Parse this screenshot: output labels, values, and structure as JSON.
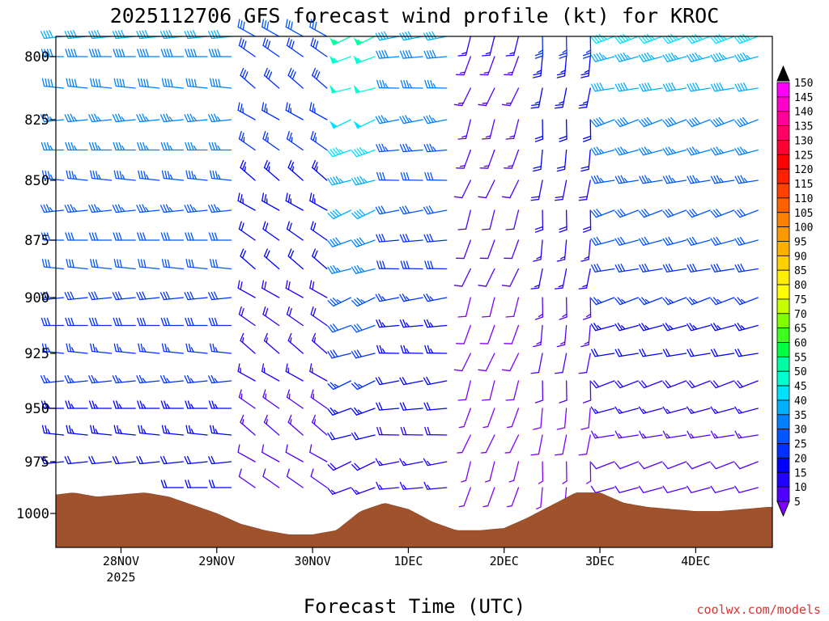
{
  "chart_data": {
    "type": "wind-barb-profile",
    "title": "2025112706 GFS forecast wind profile (kt) for KROC",
    "xlabel": "Forecast Time (UTC)",
    "ylabel": "",
    "credit": "coolwx.com/models",
    "y_axis": {
      "reversed": true,
      "ylim": [
        1016,
        791
      ],
      "ticks": [
        "800",
        "825",
        "850",
        "875",
        "900",
        "925",
        "950",
        "975",
        "1000"
      ]
    },
    "x_axis": {
      "xlim": [
        -0.68,
        6.8
      ],
      "ticks": [
        {
          "day": 0,
          "label": "28NOV",
          "sublabel": "2025"
        },
        {
          "day": 1,
          "label": "29NOV",
          "sublabel": ""
        },
        {
          "day": 2,
          "label": "30NOV",
          "sublabel": ""
        },
        {
          "day": 3,
          "label": "1DEC",
          "sublabel": ""
        },
        {
          "day": 4,
          "label": "2DEC",
          "sublabel": ""
        },
        {
          "day": 5,
          "label": "3DEC",
          "sublabel": ""
        },
        {
          "day": 6,
          "label": "4DEC",
          "sublabel": ""
        }
      ]
    },
    "levels_hpa": [
      790,
      800,
      812.5,
      825,
      837.5,
      850,
      862.5,
      875,
      887.5,
      900,
      912.5,
      925,
      937.5,
      950,
      962.5,
      975,
      987.5
    ],
    "surface_pressure": {
      "days": [
        -0.68,
        -0.5,
        -0.25,
        0,
        0.25,
        0.5,
        0.75,
        1,
        1.25,
        1.5,
        1.75,
        2,
        2.25,
        2.5,
        2.75,
        3,
        3.25,
        3.5,
        3.75,
        4,
        4.25,
        4.5,
        4.75,
        5,
        5.25,
        5.5,
        5.75,
        6,
        6.25,
        6.5,
        6.75,
        6.8
      ],
      "hpa": [
        991,
        990,
        992,
        991,
        990,
        992,
        996,
        1000,
        1005,
        1008,
        1010,
        1010,
        1008,
        999,
        995,
        998,
        1004,
        1008,
        1008,
        1007,
        1002,
        996,
        990,
        990,
        995,
        997,
        998,
        999,
        999,
        998,
        997,
        997
      ]
    },
    "wind_regimes": [
      {
        "from": -0.68,
        "to": 1.4,
        "dir_deg": 270,
        "speed_low_kt": 20,
        "speed_high_kt": 40
      },
      {
        "from": 1.4,
        "to": 2.2,
        "dir_deg": 305,
        "speed_low_kt": 10,
        "speed_high_kt": 30
      },
      {
        "from": 2.2,
        "to": 2.9,
        "dir_deg": 250,
        "speed_low_kt": 15,
        "speed_high_kt": 55
      },
      {
        "from": 2.9,
        "to": 3.6,
        "dir_deg": 265,
        "speed_low_kt": 15,
        "speed_high_kt": 40
      },
      {
        "from": 3.6,
        "to": 4.3,
        "dir_deg": 200,
        "speed_low_kt": 5,
        "speed_high_kt": 15
      },
      {
        "from": 4.3,
        "to": 5.1,
        "dir_deg": 185,
        "speed_low_kt": 5,
        "speed_high_kt": 25
      },
      {
        "from": 5.1,
        "to": 6.8,
        "dir_deg": 255,
        "speed_low_kt": 10,
        "speed_high_kt": 45
      }
    ],
    "colorbar": {
      "labels": [
        "150",
        "145",
        "140",
        "135",
        "130",
        "125",
        "120",
        "115",
        "110",
        "105",
        "100",
        "95",
        "90",
        "85",
        "80",
        "75",
        "70",
        "65",
        "60",
        "55",
        "50",
        "45",
        "40",
        "35",
        "30",
        "25",
        "20",
        "15",
        "10",
        "5"
      ],
      "colors": [
        "#ff00ff",
        "#ff00cc",
        "#ff0099",
        "#ff0066",
        "#ff0033",
        "#ff0000",
        "#ff2000",
        "#ff4000",
        "#ff6000",
        "#ff8000",
        "#ff9900",
        "#ffb000",
        "#ffd000",
        "#ffee00",
        "#ffff00",
        "#c8ff00",
        "#80ff00",
        "#40ff20",
        "#00ff40",
        "#00ffa0",
        "#00ffd0",
        "#00e0ff",
        "#00b0ff",
        "#0080ff",
        "#0055ff",
        "#0030ff",
        "#0000ff",
        "#2000ff",
        "#5000ff",
        "#8000ff"
      ]
    }
  }
}
